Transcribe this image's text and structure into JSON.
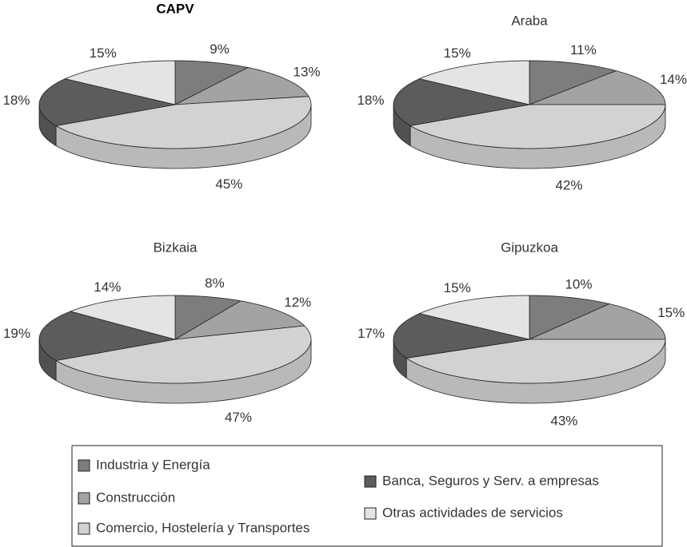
{
  "chart_data": [
    {
      "type": "pie",
      "title": "CAPV",
      "categories": [
        "Industria y Energía",
        "Construcción",
        "Comercio, Hostelería y Transportes",
        "Banca, Seguros y Serv. a empresas",
        "Otras actividades de servicios"
      ],
      "values": [
        9,
        13,
        45,
        18,
        15
      ],
      "value_labels": [
        "9%",
        "13%",
        "45%",
        "18%",
        "15%"
      ],
      "colors": [
        "#7d7d7d",
        "#a3a3a3",
        "#d2d2d2",
        "#5c5c5c",
        "#e4e4e4"
      ]
    },
    {
      "type": "pie",
      "title": "Araba",
      "categories": [
        "Industria y Energía",
        "Construcción",
        "Comercio, Hostelería y Transportes",
        "Banca, Seguros y Serv. a empresas",
        "Otras actividades de servicios"
      ],
      "values": [
        11,
        14,
        42,
        18,
        15
      ],
      "value_labels": [
        "11%",
        "14%",
        "42%",
        "18%",
        "15%"
      ],
      "colors": [
        "#7d7d7d",
        "#a3a3a3",
        "#d2d2d2",
        "#5c5c5c",
        "#e4e4e4"
      ]
    },
    {
      "type": "pie",
      "title": "Bizkaia",
      "categories": [
        "Industria y Energía",
        "Construcción",
        "Comercio, Hostelería y Transportes",
        "Banca, Seguros y Serv. a empresas",
        "Otras actividades de servicios"
      ],
      "values": [
        8,
        12,
        47,
        19,
        14
      ],
      "value_labels": [
        "8%",
        "12%",
        "47%",
        "19%",
        "14%"
      ],
      "colors": [
        "#7d7d7d",
        "#a3a3a3",
        "#d2d2d2",
        "#5c5c5c",
        "#e4e4e4"
      ]
    },
    {
      "type": "pie",
      "title": "Gipuzkoa",
      "categories": [
        "Industria y Energía",
        "Construcción",
        "Comercio, Hostelería y Transportes",
        "Banca, Seguros y Serv. a empresas",
        "Otras actividades de servicios"
      ],
      "values": [
        10,
        15,
        43,
        17,
        15
      ],
      "value_labels": [
        "10%",
        "15%",
        "43%",
        "17%",
        "15%"
      ],
      "colors": [
        "#7d7d7d",
        "#a3a3a3",
        "#d2d2d2",
        "#5c5c5c",
        "#e4e4e4"
      ]
    }
  ]
}
